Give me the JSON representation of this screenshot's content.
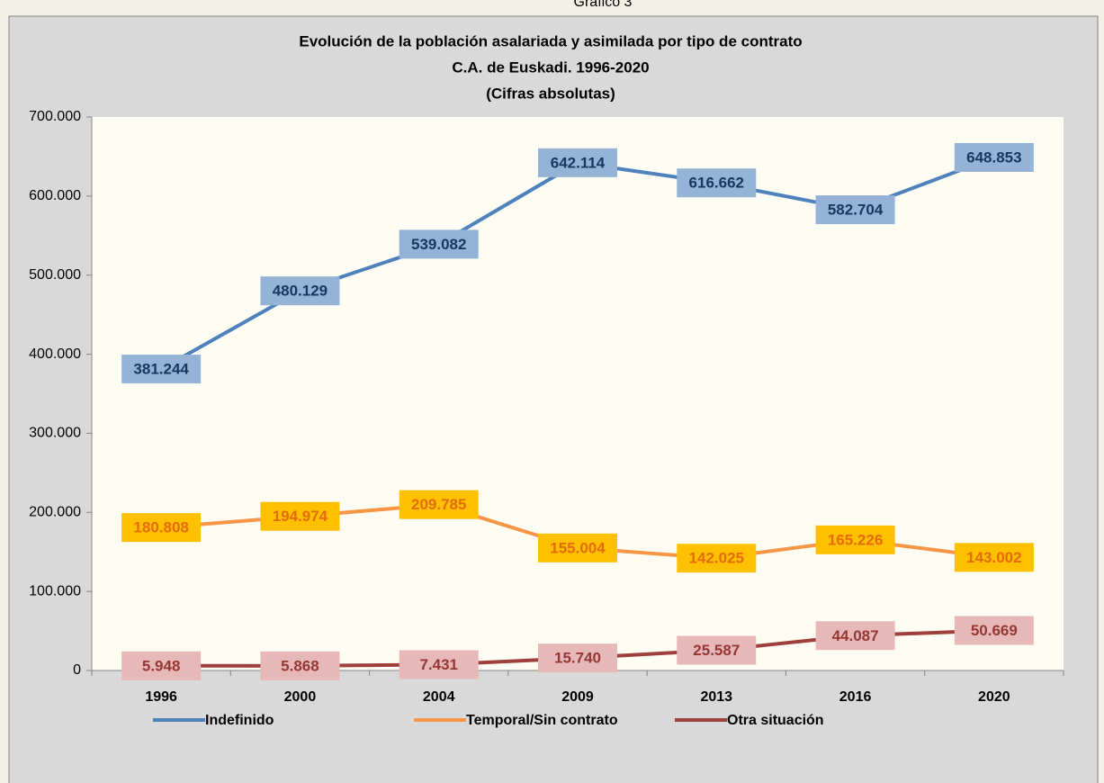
{
  "caption": "Gráfico 3",
  "chart_data": {
    "type": "line",
    "title": [
      "Evolución de la población asalariada y asimilada por tipo de contrato",
      "C.A. de Euskadi. 1996-2020",
      "(Cifras absolutas)"
    ],
    "categories": [
      "1996",
      "2000",
      "2004",
      "2009",
      "2013",
      "2016",
      "2020"
    ],
    "series": [
      {
        "name": "Indefinido",
        "color": "#4f81bd",
        "label_bg": "#95b3d7",
        "label_color": "#17375e",
        "values": [
          381244,
          480129,
          539082,
          642114,
          616662,
          582704,
          648853
        ],
        "value_labels": [
          "381.244",
          "480.129",
          "539.082",
          "642.114",
          "616.662",
          "582.704",
          "648.853"
        ]
      },
      {
        "name": "Temporal/Sin contrato",
        "color": "#f79646",
        "label_bg": "#ffc000",
        "label_color": "#e46c0a",
        "values": [
          180808,
          194974,
          209785,
          155004,
          142025,
          165226,
          143002
        ],
        "value_labels": [
          "180.808",
          "194.974",
          "209.785",
          "155.004",
          "142.025",
          "165.226",
          "143.002"
        ]
      },
      {
        "name": "Otra situación",
        "color": "#a0403c",
        "label_bg": "#e6b9b8",
        "label_color": "#953735",
        "values": [
          5948,
          5868,
          7431,
          15740,
          25587,
          44087,
          50669
        ],
        "value_labels": [
          "5.948",
          "5.868",
          "7.431",
          "15.740",
          "25.587",
          "44.087",
          "50.669"
        ]
      }
    ],
    "ylim": [
      0,
      700000
    ],
    "yticks": [
      0,
      {
        "value": 100000,
        "label": "100.000"
      },
      {
        "value": 200000,
        "label": "200.000"
      },
      {
        "value": 300000,
        "label": "300.000"
      },
      {
        "value": 400000,
        "label": "400.000"
      },
      {
        "value": 500000,
        "label": "500.000"
      },
      {
        "value": 600000,
        "label": "600.000"
      },
      {
        "value": 700000,
        "label": "700.000"
      }
    ],
    "legend": "bottom"
  }
}
